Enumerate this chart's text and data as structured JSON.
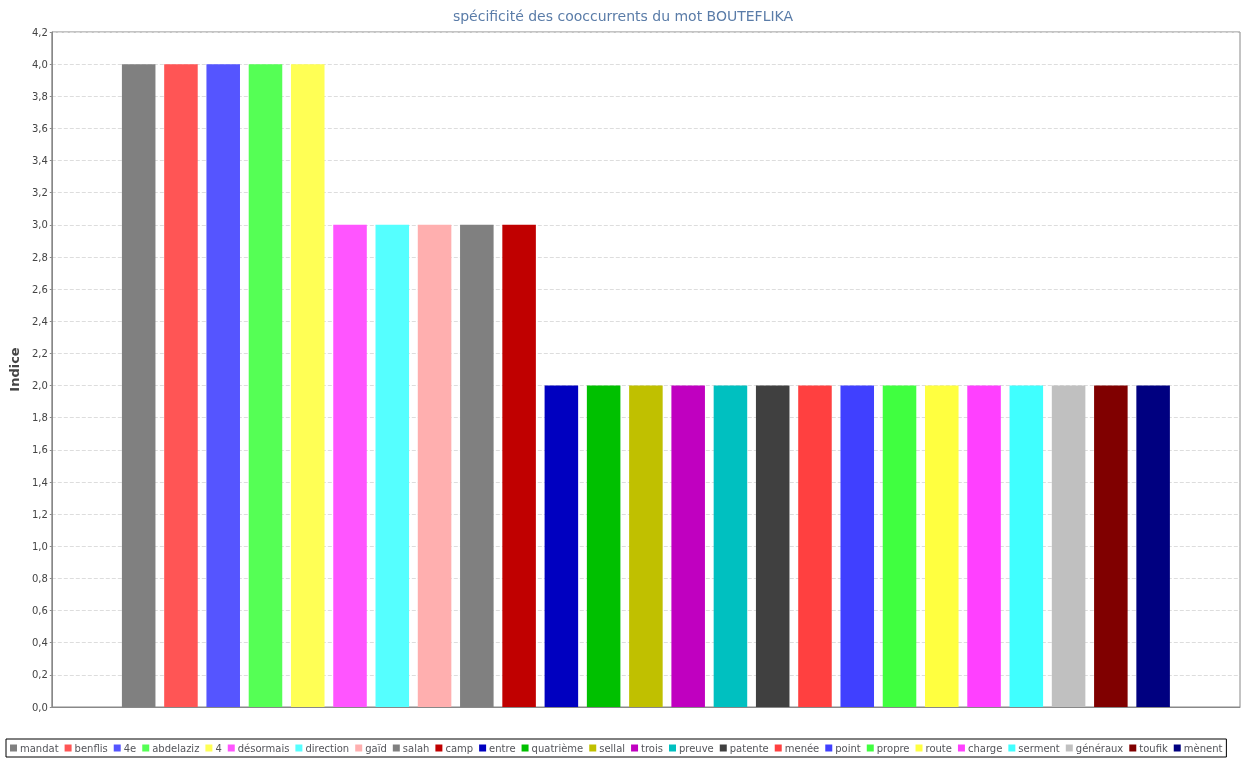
{
  "chart_data": {
    "type": "bar",
    "title": "spécificité des cooccurrents du mot BOUTEFLIKA",
    "ylabel": "Indice",
    "categories": [
      null
    ],
    "ylim": [
      0,
      4.2
    ],
    "yticks": [
      {
        "value": 0,
        "label": "0,0"
      },
      {
        "value": 0.2,
        "label": "0,2"
      },
      {
        "value": 0.4,
        "label": "0,4"
      },
      {
        "value": 0.6,
        "label": "0,6"
      },
      {
        "value": 0.8,
        "label": "0,8"
      },
      {
        "value": 1.0,
        "label": "1,0"
      },
      {
        "value": 1.2,
        "label": "1,2"
      },
      {
        "value": 1.4,
        "label": "1,4"
      },
      {
        "value": 1.6,
        "label": "1,6"
      },
      {
        "value": 1.8,
        "label": "1,8"
      },
      {
        "value": 2.0,
        "label": "2,0"
      },
      {
        "value": 2.2,
        "label": "2,2"
      },
      {
        "value": 2.4,
        "label": "2,4"
      },
      {
        "value": 2.6,
        "label": "2,6"
      },
      {
        "value": 2.8,
        "label": "2,8"
      },
      {
        "value": 3.0,
        "label": "3,0"
      },
      {
        "value": 3.2,
        "label": "3,2"
      },
      {
        "value": 3.4,
        "label": "3,4"
      },
      {
        "value": 3.6,
        "label": "3,6"
      },
      {
        "value": 3.8,
        "label": "3,8"
      },
      {
        "value": 4.0,
        "label": "4,0"
      },
      {
        "value": 4.2,
        "label": "4,2"
      }
    ],
    "grid": "y",
    "legend": "bottom",
    "series": [
      {
        "name": "mandat",
        "color": "#808080",
        "values": [
          4
        ]
      },
      {
        "name": "benflis",
        "color": "#ff5555",
        "values": [
          4
        ]
      },
      {
        "name": "4e",
        "color": "#5555ff",
        "values": [
          4
        ]
      },
      {
        "name": "abdelaziz",
        "color": "#55ff55",
        "values": [
          4
        ]
      },
      {
        "name": "4",
        "color": "#ffff55",
        "values": [
          4
        ]
      },
      {
        "name": "désormais",
        "color": "#ff55ff",
        "values": [
          3
        ]
      },
      {
        "name": "direction",
        "color": "#55ffff",
        "values": [
          3
        ]
      },
      {
        "name": "gaïd",
        "color": "#ffafaf",
        "values": [
          3
        ]
      },
      {
        "name": "salah",
        "color": "#808080",
        "values": [
          3
        ]
      },
      {
        "name": "camp",
        "color": "#c00000",
        "values": [
          3
        ]
      },
      {
        "name": "entre",
        "color": "#0000c0",
        "values": [
          2
        ]
      },
      {
        "name": "quatrième",
        "color": "#00c000",
        "values": [
          2
        ]
      },
      {
        "name": "sellal",
        "color": "#c0c000",
        "values": [
          2
        ]
      },
      {
        "name": "trois",
        "color": "#c000c0",
        "values": [
          2
        ]
      },
      {
        "name": "preuve",
        "color": "#00c0c0",
        "values": [
          2
        ]
      },
      {
        "name": "patente",
        "color": "#404040",
        "values": [
          2
        ]
      },
      {
        "name": "menée",
        "color": "#ff4040",
        "values": [
          2
        ]
      },
      {
        "name": "point",
        "color": "#4040ff",
        "values": [
          2
        ]
      },
      {
        "name": "propre",
        "color": "#40ff40",
        "values": [
          2
        ]
      },
      {
        "name": "route",
        "color": "#ffff40",
        "values": [
          2
        ]
      },
      {
        "name": "charge",
        "color": "#ff40ff",
        "values": [
          2
        ]
      },
      {
        "name": "serment",
        "color": "#40ffff",
        "values": [
          2
        ]
      },
      {
        "name": "généraux",
        "color": "#c0c0c0",
        "values": [
          2
        ]
      },
      {
        "name": "toufik",
        "color": "#800000",
        "values": [
          2
        ]
      },
      {
        "name": "mènent",
        "color": "#000080",
        "values": [
          2
        ]
      }
    ]
  }
}
